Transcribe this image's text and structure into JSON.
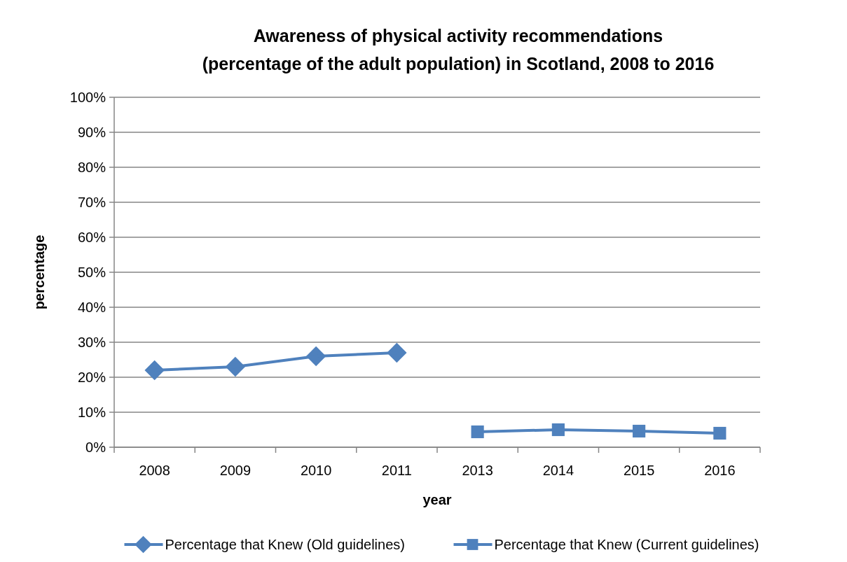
{
  "chart_data": {
    "type": "line",
    "title": "Awareness of physical activity recommendations\n(percentage of the adult population) in Scotland, 2008  to 2016",
    "xlabel": "year",
    "ylabel": "percentage",
    "categories": [
      "2008",
      "2009",
      "2010",
      "2011",
      "2013",
      "2014",
      "2015",
      "2016"
    ],
    "series": [
      {
        "name": "Percentage that Knew (Old guidelines)",
        "color": "#4f81bd",
        "marker": "diamond",
        "values": [
          22,
          23,
          26,
          27,
          null,
          null,
          null,
          null
        ]
      },
      {
        "name": "Percentage that Knew (Current guidelines)",
        "color": "#4f81bd",
        "marker": "square",
        "values": [
          null,
          null,
          null,
          null,
          4.4,
          5,
          4.6,
          4
        ]
      }
    ],
    "ylim": [
      0,
      100
    ],
    "yticks": [
      {
        "value": 0,
        "label": "0%"
      },
      {
        "value": 10,
        "label": "10%"
      },
      {
        "value": 20,
        "label": "20%"
      },
      {
        "value": 30,
        "label": "30%"
      },
      {
        "value": 40,
        "label": "40%"
      },
      {
        "value": 50,
        "label": "50%"
      },
      {
        "value": 60,
        "label": "60%"
      },
      {
        "value": 70,
        "label": "70%"
      },
      {
        "value": 80,
        "label": "80%"
      },
      {
        "value": 90,
        "label": "90%"
      },
      {
        "value": 100,
        "label": "100%"
      }
    ],
    "grid": "y",
    "legend": "bottom"
  }
}
